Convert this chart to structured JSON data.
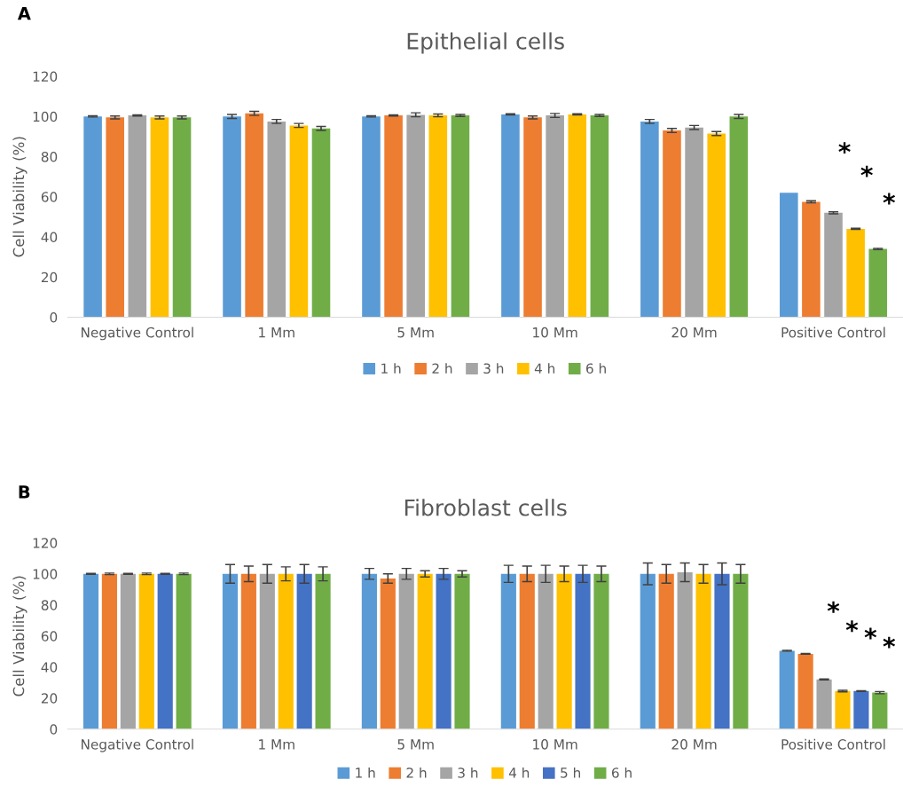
{
  "chart_data": [
    {
      "type": "bar",
      "title": "Epithelial cells",
      "ylabel": "Cell Viability (%)",
      "categories": [
        "Negative Control",
        "1 Mm",
        "5 Mm",
        "10 Mm",
        "20 Mm",
        "Positive Control"
      ],
      "series": [
        {
          "name": "1 h",
          "color": "#5b9bd5",
          "values": [
            100,
            100,
            100,
            101,
            97.5,
            62
          ],
          "errors": [
            0.3,
            1,
            0.3,
            0.3,
            1,
            null
          ]
        },
        {
          "name": "2 h",
          "color": "#ed7d31",
          "values": [
            99.5,
            101.5,
            100.5,
            99.5,
            93,
            57.5
          ],
          "errors": [
            0.7,
            1,
            0.3,
            0.7,
            1,
            0.5
          ]
        },
        {
          "name": "3 h",
          "color": "#a5a5a5",
          "values": [
            100.5,
            97.5,
            100.8,
            100.5,
            94.5,
            52
          ],
          "errors": [
            0.3,
            1,
            1,
            1,
            1,
            0.5
          ]
        },
        {
          "name": "4 h",
          "color": "#ffc000",
          "values": [
            99.5,
            95.5,
            100.5,
            101,
            91.5,
            44
          ],
          "errors": [
            0.7,
            1,
            0.7,
            0.3,
            1,
            0.3
          ]
        },
        {
          "name": "6 h",
          "color": "#70ad47",
          "values": [
            99.5,
            94,
            100.5,
            100.5,
            100,
            34
          ],
          "errors": [
            0.7,
            1,
            0.5,
            0.5,
            1,
            0.3
          ]
        }
      ],
      "ylim": [
        0,
        120
      ],
      "yticks": [
        0,
        20,
        40,
        60,
        80,
        100,
        120
      ],
      "grid": false,
      "legend": "bottom",
      "annotations": [
        "A",
        "*",
        "*",
        "*"
      ]
    },
    {
      "type": "bar",
      "title": "Fibroblast cells",
      "ylabel": "Cell Viability (%)",
      "categories": [
        "Negative Control",
        "1 Mm",
        "5 Mm",
        "10 Mm",
        "20 Mm",
        "Positive Control"
      ],
      "series": [
        {
          "name": "1 h",
          "color": "#5b9bd5",
          "values": [
            100,
            100,
            100,
            100,
            100,
            50.5
          ],
          "errors": [
            0.3,
            6,
            3.5,
            5.5,
            7,
            0.3
          ]
        },
        {
          "name": "2 h",
          "color": "#ed7d31",
          "values": [
            100,
            100,
            97,
            100,
            100,
            48.5
          ],
          "errors": [
            0.5,
            5,
            3,
            5,
            6,
            0.3
          ]
        },
        {
          "name": "3 h",
          "color": "#a5a5a5",
          "values": [
            100,
            100,
            100,
            100,
            101,
            32
          ],
          "errors": [
            0.3,
            6,
            3.5,
            5.5,
            6,
            0.3
          ]
        },
        {
          "name": "4 h",
          "color": "#ffc000",
          "values": [
            100,
            100,
            100,
            100,
            100,
            24.5
          ],
          "errors": [
            0.5,
            4.5,
            2,
            5,
            6,
            0.5
          ]
        },
        {
          "name": "5 h",
          "color": "#4472c4",
          "values": [
            100,
            100,
            100,
            100,
            100,
            24.5
          ],
          "errors": [
            0.3,
            6,
            3.5,
            5.5,
            7,
            0.3
          ]
        },
        {
          "name": "6 h",
          "color": "#70ad47",
          "values": [
            100,
            100,
            100,
            100,
            100,
            23.5
          ],
          "errors": [
            0.5,
            4.5,
            2,
            5,
            6,
            0.7
          ]
        }
      ],
      "ylim": [
        0,
        120
      ],
      "yticks": [
        0,
        20,
        40,
        60,
        80,
        100,
        120
      ],
      "grid": false,
      "legend": "bottom",
      "annotations": [
        "B",
        "*",
        "*",
        "*",
        "*"
      ]
    }
  ]
}
